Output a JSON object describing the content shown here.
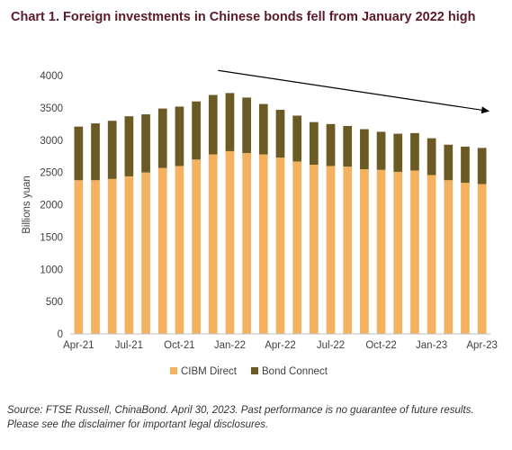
{
  "title": "Chart 1. Foreign investments in Chinese bonds fell from January 2022 high",
  "footer": {
    "line1": "Source: FTSE Russell, ChinaBond. April 30, 2023. Past performance is no guarantee of future results.",
    "line2": "Please see the disclaimer for important legal disclosures."
  },
  "colors": {
    "cibm": "#f4b261",
    "bond_connect": "#6b5a23",
    "title": "#5a1a2a"
  },
  "chart_data": {
    "type": "bar",
    "stacked": true,
    "categories": [
      "Apr-21",
      "May-21",
      "Jun-21",
      "Jul-21",
      "Aug-21",
      "Sep-21",
      "Oct-21",
      "Nov-21",
      "Dec-21",
      "Jan-22",
      "Feb-22",
      "Mar-22",
      "Apr-22",
      "May-22",
      "Jun-22",
      "Jul-22",
      "Aug-22",
      "Sep-22",
      "Oct-22",
      "Nov-22",
      "Dec-22",
      "Jan-23",
      "Feb-23",
      "Mar-23",
      "Apr-23"
    ],
    "tick_labels": [
      "Apr-21",
      "Jul-21",
      "Oct-21",
      "Jan-22",
      "Apr-22",
      "Jul-22",
      "Oct-22",
      "Jan-23",
      "Apr-23"
    ],
    "series": [
      {
        "name": "CIBM Direct",
        "values": [
          2380,
          2380,
          2400,
          2440,
          2500,
          2570,
          2600,
          2700,
          2780,
          2830,
          2800,
          2780,
          2730,
          2670,
          2620,
          2600,
          2590,
          2550,
          2540,
          2510,
          2530,
          2460,
          2380,
          2340,
          2320
        ]
      },
      {
        "name": "Bond Connect",
        "values": [
          830,
          880,
          900,
          930,
          900,
          920,
          920,
          900,
          920,
          900,
          860,
          780,
          740,
          710,
          660,
          650,
          630,
          620,
          590,
          590,
          580,
          570,
          550,
          560,
          560
        ]
      }
    ],
    "ylabel": "Billions yuan",
    "xlabel": "",
    "ylim": [
      0,
      4000
    ],
    "yticks": [
      0,
      500,
      1000,
      1500,
      2000,
      2500,
      3000,
      3500,
      4000
    ],
    "legend": {
      "position": "bottom"
    },
    "grid": false,
    "annotations": [
      {
        "type": "trend-arrow",
        "from": {
          "x": "Dec-21",
          "y": 4080
        },
        "to": {
          "x": "Apr-23",
          "y": 3450
        }
      }
    ]
  }
}
